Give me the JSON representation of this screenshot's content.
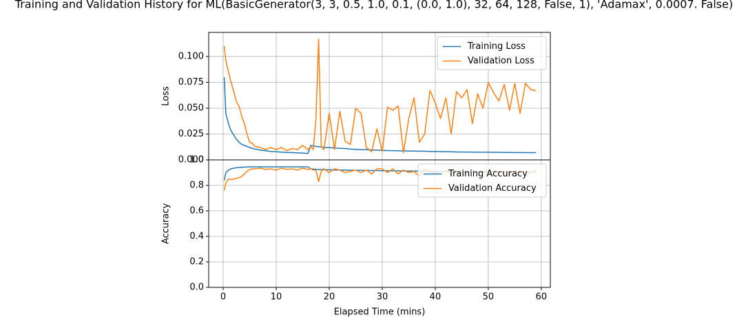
{
  "chart_data": [
    {
      "type": "line",
      "title": "Training and Validation History for ML(BasicGenerator(3, 3, 0.5, 1.0, 0.1, (0.0, 1.0), 32, 64, 128, False, 1), 'Adamax', 0.0007. False)",
      "ylabel": "Loss",
      "x": [
        0.2,
        0.5,
        1,
        1.5,
        2,
        2.5,
        3,
        3.5,
        4,
        4.5,
        5,
        5.5,
        6,
        7,
        8,
        9,
        10,
        11,
        12,
        13,
        14,
        15,
        16,
        16.5,
        17,
        17.5,
        18,
        18.5,
        19,
        20,
        21,
        22,
        23,
        24,
        25,
        26,
        27,
        28,
        29,
        30,
        31,
        32,
        33,
        34,
        35,
        36,
        37,
        38,
        39,
        40,
        41,
        42,
        43,
        44,
        45,
        46,
        47,
        48,
        49,
        50,
        51,
        52,
        53,
        54,
        55,
        56,
        57,
        58,
        59
      ],
      "series": [
        {
          "name": "Training Loss",
          "color": "#1f77b4",
          "values": [
            0.08,
            0.045,
            0.035,
            0.028,
            0.024,
            0.02,
            0.017,
            0.015,
            0.014,
            0.013,
            0.012,
            0.011,
            0.0105,
            0.0095,
            0.0088,
            0.0082,
            0.0078,
            0.0075,
            0.0072,
            0.007,
            0.0068,
            0.0066,
            0.0062,
            0.014,
            0.0135,
            0.013,
            0.0128,
            0.0125,
            0.012,
            0.0118,
            0.0115,
            0.0112,
            0.011,
            0.0105,
            0.0102,
            0.01,
            0.0098,
            0.0096,
            0.0094,
            0.0092,
            0.009,
            0.0089,
            0.0088,
            0.0087,
            0.0086,
            0.0085,
            0.0084,
            0.0083,
            0.0082,
            0.0081,
            0.008,
            0.0079,
            0.0078,
            0.0077,
            0.0076,
            0.0076,
            0.0075,
            0.0075,
            0.0074,
            0.0074,
            0.0073,
            0.0073,
            0.0072,
            0.0072,
            0.0071,
            0.0071,
            0.007,
            0.007,
            0.007
          ]
        },
        {
          "name": "Validation Loss",
          "color": "#ff7f0e",
          "values": [
            0.11,
            0.096,
            0.085,
            0.075,
            0.066,
            0.056,
            0.052,
            0.042,
            0.035,
            0.025,
            0.017,
            0.016,
            0.013,
            0.012,
            0.01,
            0.012,
            0.01,
            0.012,
            0.009,
            0.011,
            0.01,
            0.014,
            0.01,
            0.013,
            0.01,
            0.04,
            0.117,
            0.013,
            0.01,
            0.045,
            0.01,
            0.047,
            0.018,
            0.015,
            0.05,
            0.045,
            0.012,
            0.008,
            0.03,
            0.008,
            0.051,
            0.048,
            0.052,
            0.007,
            0.04,
            0.06,
            0.017,
            0.025,
            0.067,
            0.055,
            0.04,
            0.06,
            0.025,
            0.066,
            0.06,
            0.068,
            0.035,
            0.064,
            0.05,
            0.075,
            0.065,
            0.057,
            0.073,
            0.048,
            0.074,
            0.045,
            0.074,
            0.068,
            0.067
          ]
        }
      ],
      "xlim": [
        -2.73,
        61.7
      ],
      "ylim": [
        0,
        0.1233
      ],
      "yticks": [
        {
          "value": 0,
          "label": "0.000"
        },
        0.025,
        {
          "value": 0.05,
          "label": "0.050"
        },
        0.075,
        {
          "value": 0.1,
          "label": "0.100"
        }
      ],
      "grid": true,
      "legend": "upper-right"
    },
    {
      "type": "line",
      "ylabel": "Accuracy",
      "xlabel": "Elapsed Time (mins)",
      "x": [
        0.2,
        0.5,
        1,
        1.5,
        2,
        2.5,
        3,
        3.5,
        4,
        4.5,
        5,
        5.5,
        6,
        7,
        8,
        9,
        10,
        11,
        12,
        13,
        14,
        15,
        16,
        16.5,
        17,
        17.5,
        18,
        18.5,
        19,
        20,
        21,
        22,
        23,
        24,
        25,
        26,
        27,
        28,
        29,
        30,
        31,
        32,
        33,
        34,
        35,
        36,
        37,
        38,
        39,
        40,
        41,
        42,
        43,
        44,
        45,
        46,
        47,
        48,
        49,
        50,
        51,
        52,
        53,
        54,
        55,
        56,
        57,
        58,
        59
      ],
      "series": [
        {
          "name": "Training Accuracy",
          "color": "#1f77b4",
          "values": [
            0.84,
            0.9,
            0.92,
            0.93,
            0.935,
            0.938,
            0.94,
            0.942,
            0.943,
            0.944,
            0.945,
            0.945,
            0.945,
            0.945,
            0.945,
            0.945,
            0.945,
            0.945,
            0.945,
            0.945,
            0.945,
            0.945,
            0.945,
            0.93,
            0.928,
            0.926,
            0.925,
            0.924,
            0.923,
            0.922,
            0.921,
            0.92,
            0.92,
            0.919,
            0.918,
            0.918,
            0.917,
            0.916,
            0.916,
            0.915,
            0.915,
            0.914,
            0.914,
            0.913,
            0.913,
            0.912,
            0.912,
            0.912,
            0.911,
            0.911,
            0.911,
            0.91,
            0.91,
            0.91,
            0.909,
            0.909,
            0.909,
            0.908,
            0.908,
            0.908,
            0.908,
            0.907,
            0.907,
            0.907,
            0.907,
            0.906,
            0.906,
            0.906,
            0.905
          ]
        },
        {
          "name": "Validation Accuracy",
          "color": "#ff7f0e",
          "values": [
            0.76,
            0.82,
            0.85,
            0.845,
            0.85,
            0.855,
            0.86,
            0.87,
            0.89,
            0.91,
            0.925,
            0.93,
            0.93,
            0.935,
            0.925,
            0.93,
            0.92,
            0.935,
            0.925,
            0.93,
            0.92,
            0.935,
            0.925,
            0.93,
            0.92,
            0.92,
            0.83,
            0.91,
            0.93,
            0.9,
            0.93,
            0.92,
            0.9,
            0.91,
            0.92,
            0.9,
            0.92,
            0.89,
            0.93,
            0.93,
            0.9,
            0.93,
            0.89,
            0.92,
            0.9,
            0.91,
            0.87,
            0.93,
            0.91,
            0.9,
            0.89,
            0.92,
            0.88,
            0.9,
            0.91,
            0.89,
            0.92,
            0.9,
            0.91,
            0.88,
            0.92,
            0.9,
            0.91,
            0.89,
            0.92,
            0.9,
            0.91,
            0.9,
            0.92
          ]
        }
      ],
      "xlim": [
        -2.73,
        61.7
      ],
      "ylim": [
        0,
        1.0
      ],
      "xticks": [
        0,
        10,
        20,
        30,
        40,
        50,
        60
      ],
      "yticks": [
        {
          "value": 0,
          "label": "0.0"
        },
        0.2,
        0.4,
        0.6,
        0.8,
        {
          "value": 1,
          "label": "1.0"
        }
      ],
      "grid": true,
      "legend": "upper-right"
    }
  ]
}
